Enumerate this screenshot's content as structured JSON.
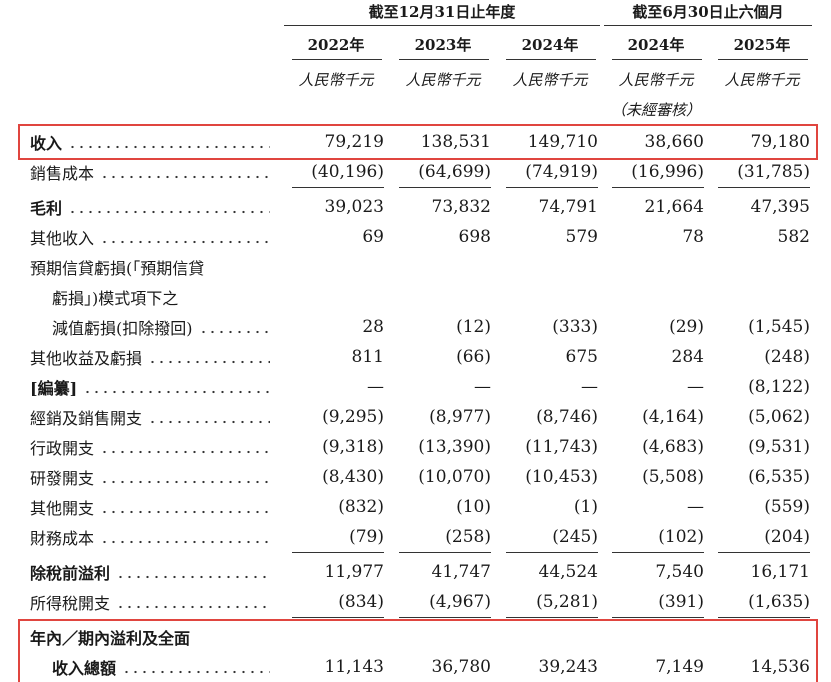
{
  "header": {
    "groups": [
      {
        "label": "截至12月31日止年度",
        "span": 3
      },
      {
        "label": "截至6月30日止六個月",
        "span": 2
      }
    ],
    "years": [
      "2022年",
      "2023年",
      "2024年",
      "2024年",
      "2025年"
    ],
    "units": [
      "人民幣千元",
      "人民幣千元",
      "人民幣千元",
      "人民幣千元",
      "人民幣千元"
    ],
    "notes": [
      null,
      null,
      null,
      "（未經審核）",
      null
    ]
  },
  "table": {
    "rows": [
      {
        "label": [
          "收入"
        ],
        "values": [
          "79,219",
          "138,531",
          "149,710",
          "38,660",
          "79,180"
        ],
        "bold": true,
        "highlight": true
      },
      {
        "label": [
          "銷售成本"
        ],
        "values": [
          "(40,196)",
          "(64,699)",
          "(74,919)",
          "(16,996)",
          "(31,785)"
        ],
        "underline": true
      },
      {
        "label": [
          "毛利"
        ],
        "values": [
          "39,023",
          "73,832",
          "74,791",
          "21,664",
          "47,395"
        ],
        "bold": true
      },
      {
        "label": [
          "其他收入"
        ],
        "values": [
          "69",
          "698",
          "579",
          "78",
          "582"
        ]
      },
      {
        "label": [
          "預期信貸虧損(「預期信貸",
          "虧損」)模式項下之",
          "減值虧損(扣除撥回)"
        ],
        "values": [
          "28",
          "(12)",
          "(333)",
          "(29)",
          "(1,545)"
        ]
      },
      {
        "label": [
          "其他收益及虧損"
        ],
        "values": [
          "811",
          "(66)",
          "675",
          "284",
          "(248)"
        ]
      },
      {
        "label": [
          "[編纂]"
        ],
        "values": [
          "—",
          "—",
          "—",
          "—",
          "(8,122)"
        ],
        "bold": true
      },
      {
        "label": [
          "經銷及銷售開支"
        ],
        "values": [
          "(9,295)",
          "(8,977)",
          "(8,746)",
          "(4,164)",
          "(5,062)"
        ]
      },
      {
        "label": [
          "行政開支"
        ],
        "values": [
          "(9,318)",
          "(13,390)",
          "(11,743)",
          "(4,683)",
          "(9,531)"
        ]
      },
      {
        "label": [
          "研發開支"
        ],
        "values": [
          "(8,430)",
          "(10,070)",
          "(10,453)",
          "(5,508)",
          "(6,535)"
        ]
      },
      {
        "label": [
          "其他開支"
        ],
        "values": [
          "(832)",
          "(10)",
          "(1)",
          "—",
          "(559)"
        ]
      },
      {
        "label": [
          "財務成本"
        ],
        "values": [
          "(79)",
          "(258)",
          "(245)",
          "(102)",
          "(204)"
        ],
        "underline": true
      },
      {
        "label": [
          "除稅前溢利"
        ],
        "values": [
          "11,977",
          "41,747",
          "44,524",
          "7,540",
          "16,171"
        ],
        "bold": true
      },
      {
        "label": [
          "所得稅開支"
        ],
        "values": [
          "(834)",
          "(4,967)",
          "(5,281)",
          "(391)",
          "(1,635)"
        ],
        "underline": true
      },
      {
        "label": [
          "年內／期內溢利及全面",
          "收入總額"
        ],
        "values": [
          "11,143",
          "36,780",
          "39,243",
          "7,149",
          "14,536"
        ],
        "bold": true,
        "highlight": true
      }
    ]
  }
}
